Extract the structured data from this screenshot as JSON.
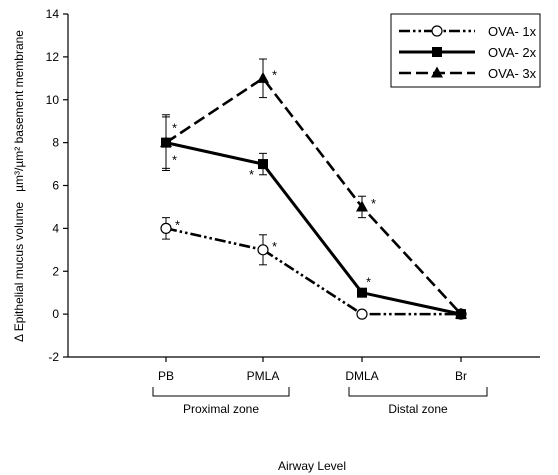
{
  "chart_data": {
    "type": "line",
    "ylabel": "Δ Epithelial mucus volume   µm³/µm² basement membrane",
    "xlabel": "Airway Level",
    "ylim": [
      -2,
      14
    ],
    "yticks": [
      -2,
      0,
      2,
      4,
      6,
      8,
      10,
      12,
      14
    ],
    "categories": [
      "PB",
      "PMLA",
      "DMLA",
      "Br"
    ],
    "zones": [
      {
        "label": "Proximal zone",
        "from": "PB",
        "to": "PMLA"
      },
      {
        "label": "Distal zone",
        "from": "DMLA",
        "to": "Br"
      }
    ],
    "legend_position": "top-right",
    "series": [
      {
        "name": "OVA- 1x",
        "marker": "circle-open",
        "line_style": "dash-dot-dot",
        "values": [
          4,
          3,
          0,
          0
        ],
        "errors": [
          0.5,
          0.7,
          0,
          0
        ],
        "significant": [
          true,
          true,
          false,
          false
        ]
      },
      {
        "name": "OVA- 2x",
        "marker": "square-filled",
        "line_style": "solid",
        "values": [
          8,
          7,
          1,
          0
        ],
        "errors": [
          1.3,
          0.5,
          0,
          0
        ],
        "significant": [
          true,
          true,
          true,
          false
        ]
      },
      {
        "name": "OVA- 3x",
        "marker": "triangle-filled",
        "line_style": "dashed",
        "values": [
          8,
          11,
          5,
          0
        ],
        "errors": [
          1.2,
          0.9,
          0.5,
          0
        ],
        "significant": [
          true,
          true,
          true,
          false
        ]
      }
    ],
    "star_symbol": "*"
  }
}
